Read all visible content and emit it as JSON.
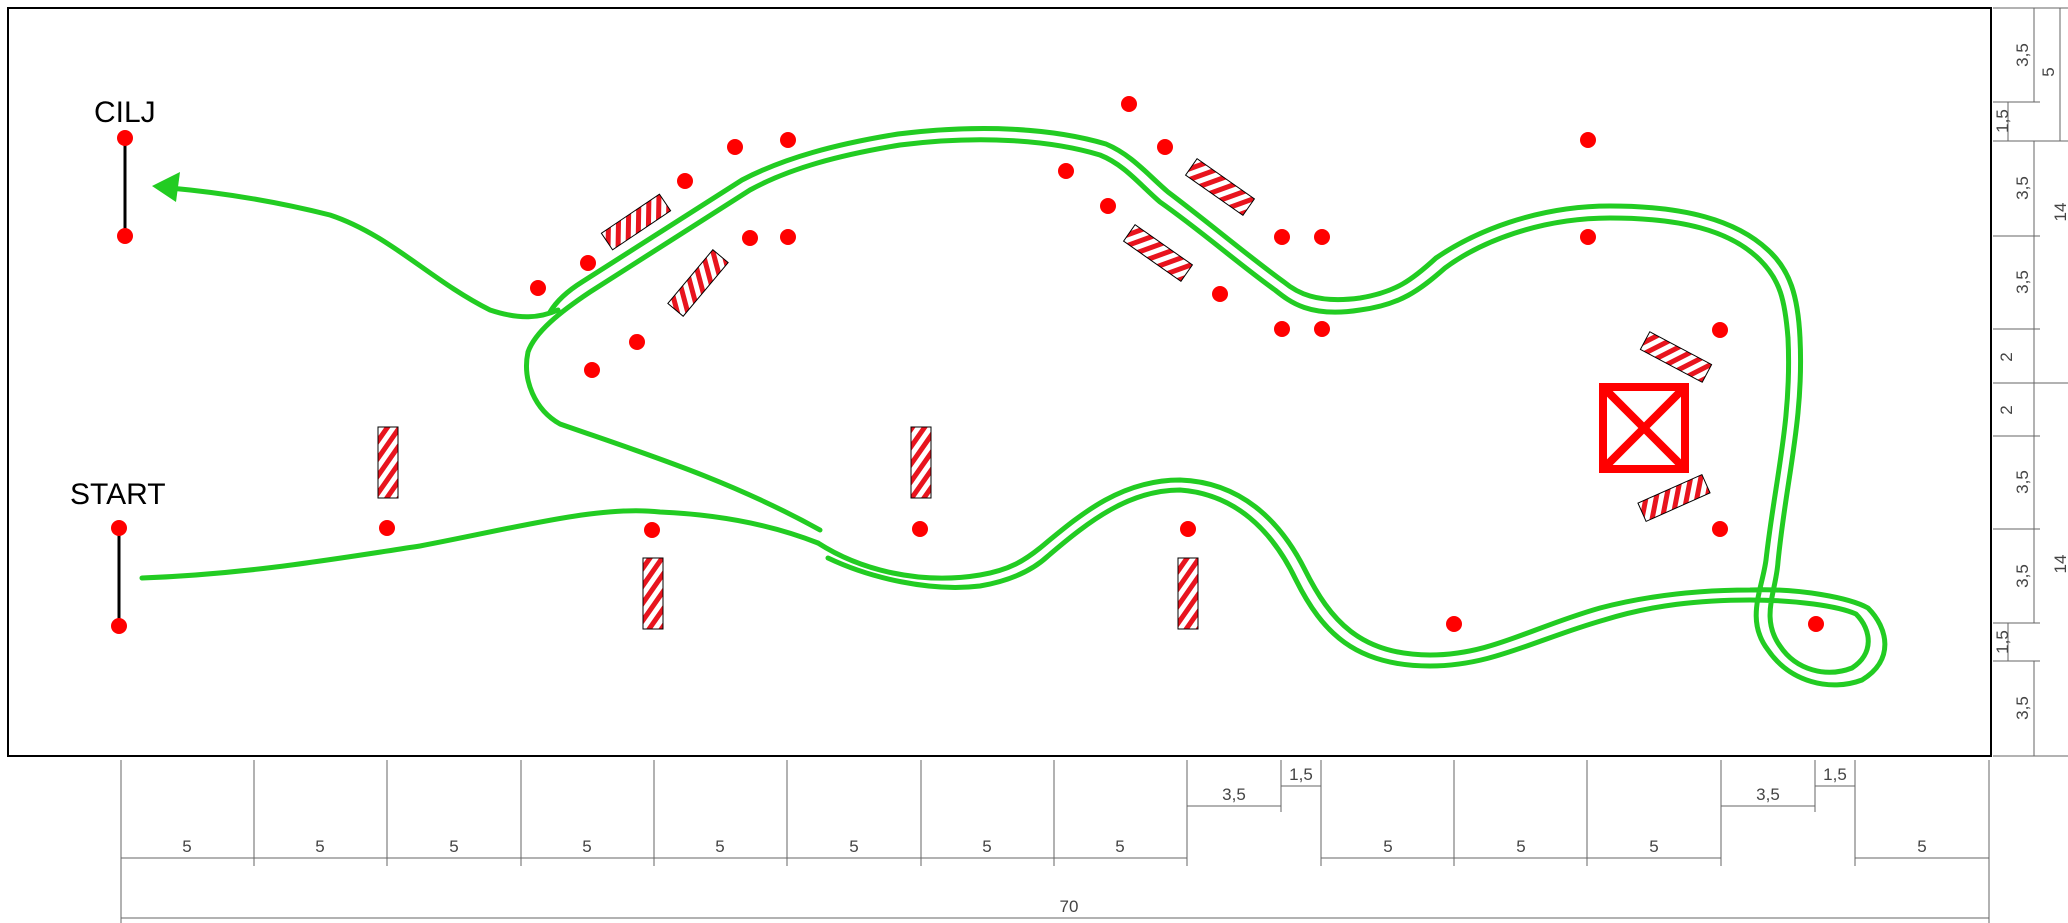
{
  "labels": {
    "finish": "CILJ",
    "start": "START"
  },
  "colors": {
    "path": "#22cc22",
    "cone": "#ff0000",
    "stripe": "#e8141e",
    "border": "#000000",
    "dim": "#666666"
  },
  "bottom_dimensions": [
    "5",
    "5",
    "5",
    "5",
    "5",
    "5",
    "5",
    "5",
    "3,5",
    "1,5",
    "5",
    "5",
    "5",
    "3,5",
    "1,5",
    "5"
  ],
  "total_length": "70",
  "right_dimensions": [
    "3,5",
    "5",
    "1,5",
    "3,5",
    "14",
    "3,5",
    "2",
    "2",
    "3,5",
    "14",
    "3,5",
    "1,5",
    "3,5"
  ]
}
